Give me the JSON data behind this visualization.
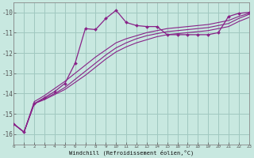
{
  "xlabel": "Windchill (Refroidissement éolien,°C)",
  "bg_color": "#c8e8e0",
  "grid_color": "#a0c8c0",
  "line_color": "#882288",
  "xlim": [
    0,
    23
  ],
  "ylim": [
    -16.5,
    -9.5
  ],
  "yticks": [
    -16,
    -15,
    -14,
    -13,
    -12,
    -11,
    -10
  ],
  "xticks": [
    0,
    1,
    2,
    3,
    4,
    5,
    6,
    7,
    8,
    9,
    10,
    11,
    12,
    13,
    14,
    15,
    16,
    17,
    18,
    19,
    20,
    21,
    22,
    23
  ],
  "x": [
    0,
    1,
    2,
    3,
    4,
    5,
    6,
    7,
    8,
    9,
    10,
    11,
    12,
    13,
    14,
    15,
    16,
    17,
    18,
    19,
    20,
    21,
    22,
    23
  ],
  "y_main": [
    -15.5,
    -15.9,
    -14.5,
    -14.2,
    -13.9,
    -13.5,
    -12.5,
    -10.8,
    -10.85,
    -10.3,
    -9.9,
    -10.5,
    -10.65,
    -10.7,
    -10.7,
    -11.1,
    -11.1,
    -11.1,
    -11.1,
    -11.1,
    -11.0,
    -10.2,
    -10.05,
    -10.0
  ],
  "y_line1": [
    -15.5,
    -15.9,
    -14.4,
    -14.1,
    -13.75,
    -13.4,
    -13.0,
    -12.6,
    -12.2,
    -11.85,
    -11.5,
    -11.3,
    -11.15,
    -11.0,
    -10.9,
    -10.8,
    -10.75,
    -10.7,
    -10.65,
    -10.6,
    -10.5,
    -10.4,
    -10.2,
    -10.05
  ],
  "y_line2": [
    -15.5,
    -15.9,
    -14.5,
    -14.25,
    -14.0,
    -13.7,
    -13.3,
    -12.9,
    -12.5,
    -12.1,
    -11.75,
    -11.5,
    -11.3,
    -11.15,
    -11.05,
    -10.95,
    -10.9,
    -10.85,
    -10.8,
    -10.75,
    -10.65,
    -10.55,
    -10.3,
    -10.1
  ],
  "y_line3": [
    -15.5,
    -15.9,
    -14.5,
    -14.3,
    -14.05,
    -13.8,
    -13.45,
    -13.1,
    -12.7,
    -12.3,
    -11.95,
    -11.7,
    -11.5,
    -11.35,
    -11.2,
    -11.1,
    -11.05,
    -11.0,
    -10.95,
    -10.9,
    -10.8,
    -10.7,
    -10.45,
    -10.25
  ]
}
